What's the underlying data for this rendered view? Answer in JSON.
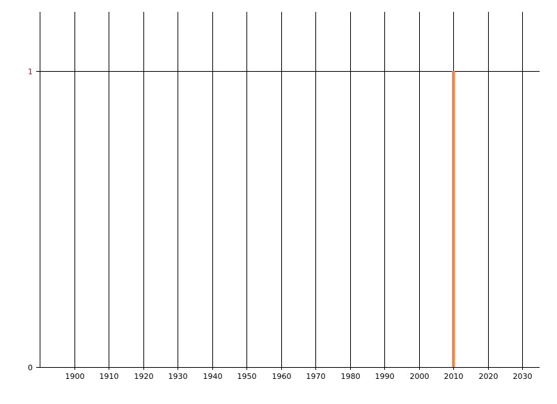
{
  "chart_data": {
    "type": "bar",
    "title": "",
    "xlabel": "",
    "ylabel": "",
    "xlim": [
      1890,
      2035
    ],
    "ylim": [
      0,
      1
    ],
    "x_ticks": [
      1900,
      1910,
      1920,
      1930,
      1940,
      1950,
      1960,
      1970,
      1980,
      1990,
      2000,
      2010,
      2020,
      2030
    ],
    "y_ticks": [
      {
        "value": 0,
        "label": "0",
        "color": "#000000"
      },
      {
        "value": 1,
        "label": "1",
        "color": "#c00000"
      }
    ],
    "grid": true,
    "series": [
      {
        "x": [
          2010
        ],
        "values": [
          1
        ],
        "color": "#ff7f3f"
      }
    ]
  }
}
